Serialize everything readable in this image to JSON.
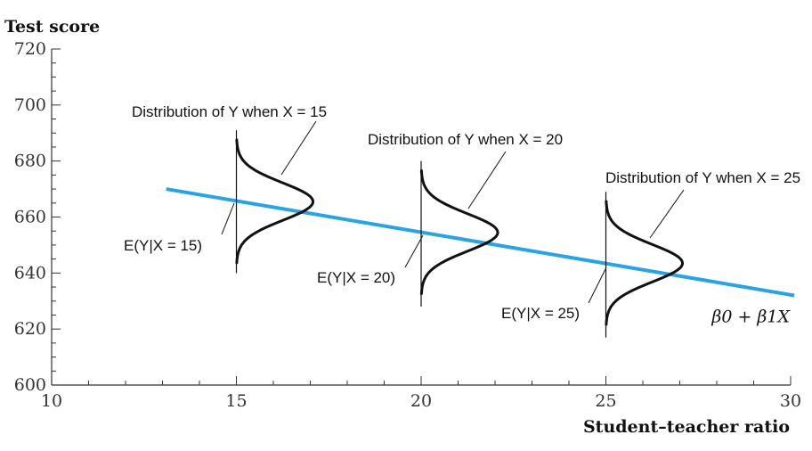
{
  "chart_data": {
    "type": "line",
    "ylabel": "Test score",
    "xlabel": "Student–teacher ratio",
    "xlim": [
      10,
      30
    ],
    "ylim": [
      600,
      720
    ],
    "xticks": [
      10,
      15,
      20,
      25,
      30
    ],
    "yticks": [
      600,
      620,
      640,
      660,
      680,
      700,
      720
    ],
    "line_color": "#29a3e3",
    "regression_line": {
      "label": "β0 + β1X",
      "x": [
        13.1,
        30.1
      ],
      "y": [
        670,
        632
      ]
    },
    "distributions": [
      {
        "x": 15,
        "mean": 665.5,
        "ymin": 640,
        "ymax": 691,
        "label": "Distribution of Y when X = 15",
        "mean_label": "E(Y|X = 15)"
      },
      {
        "x": 20,
        "mean": 654.5,
        "ymin": 628,
        "ymax": 680,
        "label": "Distribution of Y when X = 20",
        "mean_label": "E(Y|X = 20)"
      },
      {
        "x": 25,
        "mean": 643.5,
        "ymin": 617,
        "ymax": 669,
        "label": "Distribution of Y when X = 25",
        "mean_label": "E(Y|X = 25)"
      }
    ]
  }
}
